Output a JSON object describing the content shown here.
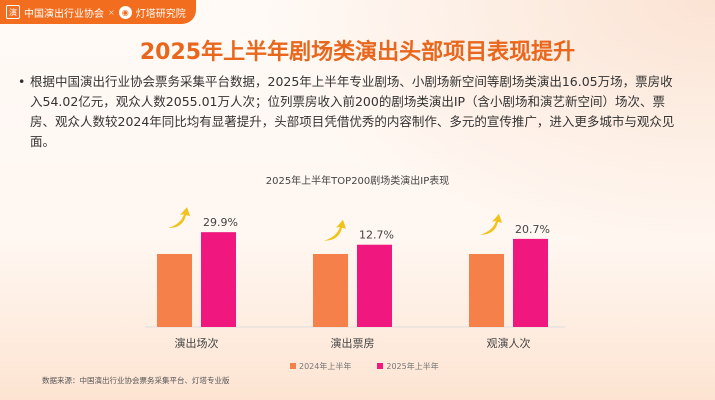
{
  "header": {
    "org_logo_text": "中国演出行业协会",
    "separator": "×",
    "partner": "灯塔研究院"
  },
  "title": "2025年上半年剧场类演出头部项目表现提升",
  "body_text": "根据中国演出行业协会票务采集平台数据，2025年上半年专业剧场、小剧场新空间等剧场类演出16.05万场，票房收入54.02亿元，观众人数2055.01万人次；位列票房收入前200的剧场类演出IP（含小剧场和演艺新空间）场次、票房、观众人数较2024年同比均有显著提升，头部项目凭借优秀的内容制作、多元的宣传推广，进入更多城市与观众见面。",
  "bullet": "•",
  "chart_data": {
    "type": "bar",
    "title": "2025年上半年TOP200剧场类演出IP表现",
    "categories": [
      "演出场次",
      "演出票房",
      "观演人次"
    ],
    "series": [
      {
        "name": "2024年上半年",
        "values": [
          100,
          100,
          100
        ],
        "color": "#f5804a"
      },
      {
        "name": "2025年上半年",
        "values": [
          129.9,
          112.7,
          120.7
        ],
        "color": "#f0187f"
      }
    ],
    "growth_labels": [
      "29.9%",
      "12.7%",
      "20.7%"
    ],
    "growth_icon": "arrow-up-curved-icon",
    "legend_position": "bottom",
    "grid": false
  },
  "source": "数据来源：中国演出行业协会票务采集平台、灯塔专业版"
}
